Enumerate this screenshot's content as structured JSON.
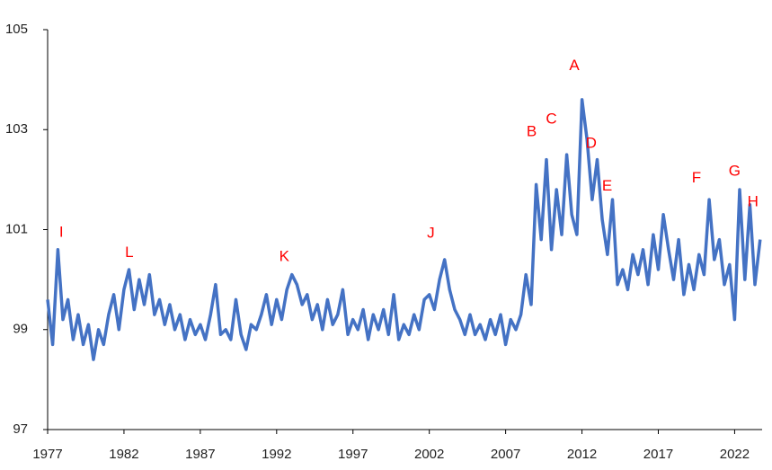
{
  "chart_data": {
    "type": "line",
    "x": [
      1977,
      1977.33,
      1977.67,
      1978,
      1978.33,
      1978.67,
      1979,
      1979.33,
      1979.67,
      1980,
      1980.33,
      1980.67,
      1981,
      1981.33,
      1981.67,
      1982,
      1982.33,
      1982.67,
      1983,
      1983.33,
      1983.67,
      1984,
      1984.33,
      1984.67,
      1985,
      1985.33,
      1985.67,
      1986,
      1986.33,
      1986.67,
      1987,
      1987.33,
      1987.67,
      1988,
      1988.33,
      1988.67,
      1989,
      1989.33,
      1989.67,
      1990,
      1990.33,
      1990.67,
      1991,
      1991.33,
      1991.67,
      1992,
      1992.33,
      1992.67,
      1993,
      1993.33,
      1993.67,
      1994,
      1994.33,
      1994.67,
      1995,
      1995.33,
      1995.67,
      1996,
      1996.33,
      1996.67,
      1997,
      1997.33,
      1997.67,
      1998,
      1998.33,
      1998.67,
      1999,
      1999.33,
      1999.67,
      2000,
      2000.33,
      2000.67,
      2001,
      2001.33,
      2001.67,
      2002,
      2002.33,
      2002.67,
      2003,
      2003.33,
      2003.67,
      2004,
      2004.33,
      2004.67,
      2005,
      2005.33,
      2005.67,
      2006,
      2006.33,
      2006.67,
      2007,
      2007.33,
      2007.67,
      2008,
      2008.33,
      2008.67,
      2009,
      2009.33,
      2009.67,
      2010,
      2010.33,
      2010.67,
      2011,
      2011.33,
      2011.67,
      2012,
      2012.33,
      2012.67,
      2013,
      2013.33,
      2013.67,
      2014,
      2014.33,
      2014.67,
      2015,
      2015.33,
      2015.67,
      2016,
      2016.33,
      2016.67,
      2017,
      2017.33,
      2017.67,
      2018,
      2018.33,
      2018.67,
      2019,
      2019.33,
      2019.67,
      2020,
      2020.33,
      2020.67,
      2021,
      2021.33,
      2021.67,
      2022,
      2022.33,
      2022.67,
      2023,
      2023.33,
      2023.67
    ],
    "series": [
      {
        "color": "#4472c4",
        "values": [
          99.6,
          98.7,
          100.6,
          99.2,
          99.6,
          98.8,
          99.3,
          98.7,
          99.1,
          98.4,
          99.0,
          98.7,
          99.3,
          99.7,
          99.0,
          99.8,
          100.2,
          99.4,
          100.0,
          99.5,
          100.1,
          99.3,
          99.6,
          99.1,
          99.5,
          99.0,
          99.3,
          98.8,
          99.2,
          98.9,
          99.1,
          98.8,
          99.3,
          99.9,
          98.9,
          99.0,
          98.8,
          99.6,
          98.9,
          98.6,
          99.1,
          99.0,
          99.3,
          99.7,
          99.1,
          99.6,
          99.2,
          99.8,
          100.1,
          99.9,
          99.5,
          99.7,
          99.2,
          99.5,
          99.0,
          99.6,
          99.1,
          99.3,
          99.8,
          98.9,
          99.2,
          99.0,
          99.4,
          98.8,
          99.3,
          99.0,
          99.4,
          98.9,
          99.7,
          98.8,
          99.1,
          98.9,
          99.3,
          99.0,
          99.6,
          99.7,
          99.4,
          100.0,
          100.4,
          99.8,
          99.4,
          99.2,
          98.9,
          99.3,
          98.9,
          99.1,
          98.8,
          99.2,
          98.9,
          99.3,
          98.7,
          99.2,
          99.0,
          99.3,
          100.1,
          99.5,
          101.9,
          100.8,
          102.4,
          100.6,
          101.8,
          100.9,
          102.5,
          101.3,
          100.9,
          103.6,
          102.8,
          101.6,
          102.4,
          101.2,
          100.5,
          101.6,
          99.9,
          100.2,
          99.8,
          100.5,
          100.1,
          100.6,
          99.9,
          100.9,
          100.2,
          101.3,
          100.6,
          100.0,
          100.8,
          99.7,
          100.3,
          99.8,
          100.5,
          100.1,
          101.6,
          100.4,
          100.8,
          99.9,
          100.3,
          99.2,
          101.8,
          100.0,
          101.5,
          99.9,
          100.8
        ]
      }
    ],
    "xlim": [
      1977,
      2023.8
    ],
    "xticks": [
      1977,
      1982,
      1987,
      1992,
      1997,
      2002,
      2007,
      2012,
      2017,
      2022
    ],
    "ylim": [
      97,
      105
    ],
    "yticks": [
      97,
      99,
      101,
      103,
      105
    ],
    "annotations": [
      {
        "text": "I",
        "x": 1977.9,
        "y": 100.94
      },
      {
        "text": "L",
        "x": 1982.35,
        "y": 100.53
      },
      {
        "text": "K",
        "x": 1992.5,
        "y": 100.45
      },
      {
        "text": "J",
        "x": 2002.1,
        "y": 100.92
      },
      {
        "text": "B",
        "x": 2008.7,
        "y": 102.95
      },
      {
        "text": "C",
        "x": 2010.0,
        "y": 103.2
      },
      {
        "text": "A",
        "x": 2011.5,
        "y": 104.27
      },
      {
        "text": "D",
        "x": 2012.6,
        "y": 102.72
      },
      {
        "text": "E",
        "x": 2013.65,
        "y": 101.86
      },
      {
        "text": "F",
        "x": 2019.5,
        "y": 102.02
      },
      {
        "text": "G",
        "x": 2022.0,
        "y": 102.16
      },
      {
        "text": "H",
        "x": 2023.2,
        "y": 101.55
      }
    ],
    "annotation_color": "#ff0000"
  }
}
